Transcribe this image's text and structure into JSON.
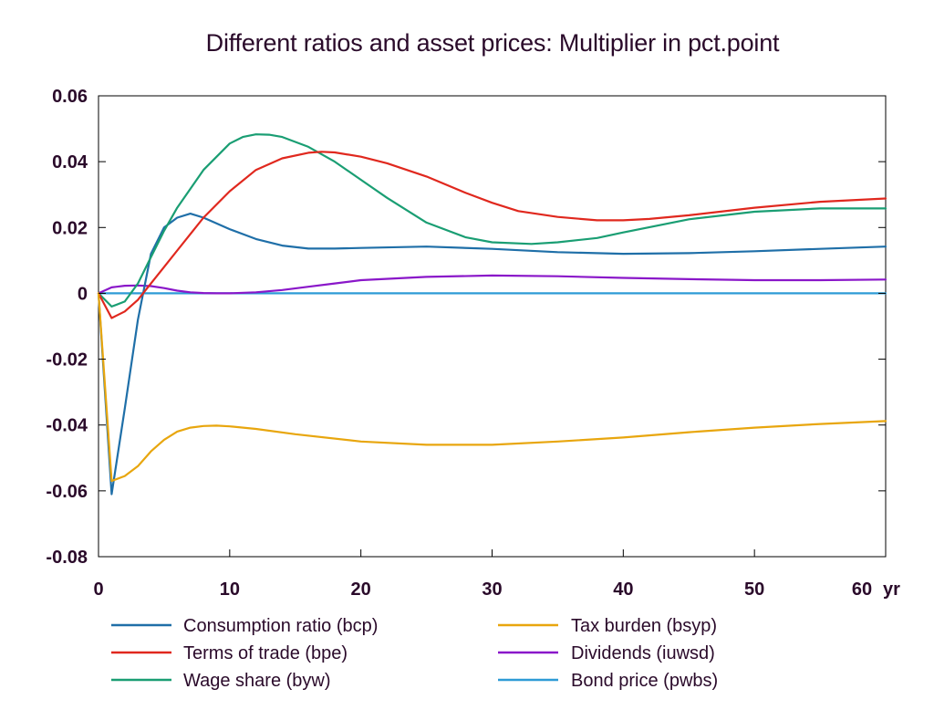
{
  "chart_data": {
    "type": "line",
    "title": "Different ratios and asset prices: Multiplier in pct.point",
    "x_unit_label": "yr",
    "xlim": [
      0,
      60
    ],
    "ylim": [
      -0.08,
      0.06
    ],
    "xticks": [
      0,
      10,
      20,
      30,
      40,
      50,
      60
    ],
    "yticks": [
      -0.08,
      -0.06,
      -0.04,
      -0.02,
      0,
      0.02,
      0.04,
      0.06
    ],
    "ytick_labels": [
      "-0.08",
      "-0.06",
      "-0.04",
      "-0.02",
      "0",
      "0.02",
      "0.04",
      "0.06"
    ],
    "grid": false,
    "legend_position": "bottom",
    "series": [
      {
        "name": "Consumption ratio (bcp)",
        "color": "#1f6fa8",
        "x": [
          0,
          1,
          2,
          3,
          4,
          5,
          6,
          7,
          8,
          10,
          12,
          14,
          16,
          18,
          20,
          25,
          30,
          35,
          40,
          45,
          50,
          55,
          60
        ],
        "y": [
          0,
          -0.061,
          -0.035,
          -0.008,
          0.012,
          0.02,
          0.023,
          0.0242,
          0.023,
          0.0195,
          0.0165,
          0.0145,
          0.0136,
          0.0136,
          0.0138,
          0.0142,
          0.0135,
          0.0125,
          0.012,
          0.0122,
          0.0128,
          0.0135,
          0.0142
        ]
      },
      {
        "name": "Terms of trade (bpe)",
        "color": "#e0281e",
        "x": [
          0,
          1,
          2,
          3,
          4,
          5,
          6,
          8,
          10,
          12,
          14,
          16,
          17,
          18,
          20,
          22,
          25,
          28,
          30,
          32,
          35,
          38,
          40,
          42,
          45,
          50,
          55,
          60
        ],
        "y": [
          0,
          -0.0075,
          -0.0055,
          -0.002,
          0.003,
          0.008,
          0.013,
          0.023,
          0.031,
          0.0375,
          0.041,
          0.0427,
          0.043,
          0.0428,
          0.0415,
          0.0395,
          0.0355,
          0.0305,
          0.0275,
          0.025,
          0.0232,
          0.0222,
          0.0222,
          0.0226,
          0.0237,
          0.026,
          0.0278,
          0.0288
        ]
      },
      {
        "name": "Wage share (byw)",
        "color": "#1a9e73",
        "x": [
          0,
          1,
          2,
          3,
          4,
          5,
          6,
          8,
          10,
          11,
          12,
          13,
          14,
          16,
          18,
          20,
          22,
          25,
          28,
          30,
          33,
          35,
          38,
          40,
          45,
          50,
          55,
          60
        ],
        "y": [
          0,
          -0.004,
          -0.0025,
          0.003,
          0.011,
          0.019,
          0.026,
          0.0375,
          0.0455,
          0.0475,
          0.0483,
          0.0482,
          0.0475,
          0.0445,
          0.04,
          0.0345,
          0.029,
          0.0215,
          0.017,
          0.0155,
          0.015,
          0.0155,
          0.0168,
          0.0185,
          0.0225,
          0.0248,
          0.0258,
          0.0258
        ]
      },
      {
        "name": "Tax burden (bsyp)",
        "color": "#e8a60e",
        "x": [
          0,
          1,
          2,
          3,
          4,
          5,
          6,
          7,
          8,
          9,
          10,
          12,
          15,
          20,
          25,
          30,
          35,
          40,
          45,
          50,
          55,
          60
        ],
        "y": [
          0,
          -0.057,
          -0.0555,
          -0.0525,
          -0.048,
          -0.0445,
          -0.042,
          -0.0408,
          -0.0403,
          -0.0402,
          -0.0404,
          -0.0412,
          -0.0428,
          -0.045,
          -0.046,
          -0.046,
          -0.045,
          -0.0438,
          -0.0422,
          -0.0408,
          -0.0397,
          -0.0388
        ]
      },
      {
        "name": "Dividends (iuwsd)",
        "color": "#8a17c9",
        "x": [
          0,
          1,
          2,
          3,
          4,
          5,
          6,
          7,
          8,
          9,
          10,
          12,
          14,
          16,
          18,
          20,
          25,
          30,
          35,
          40,
          45,
          50,
          55,
          60
        ],
        "y": [
          0,
          0.0018,
          0.0023,
          0.0024,
          0.0022,
          0.0016,
          0.0008,
          0.0003,
          0.0001,
          0,
          0,
          0.0003,
          0.001,
          0.002,
          0.003,
          0.004,
          0.005,
          0.0054,
          0.0052,
          0.0047,
          0.0043,
          0.004,
          0.004,
          0.0042
        ]
      },
      {
        "name": "Bond price (pwbs)",
        "color": "#2e9bd6",
        "x": [
          0,
          60
        ],
        "y": [
          0,
          0
        ]
      }
    ]
  }
}
